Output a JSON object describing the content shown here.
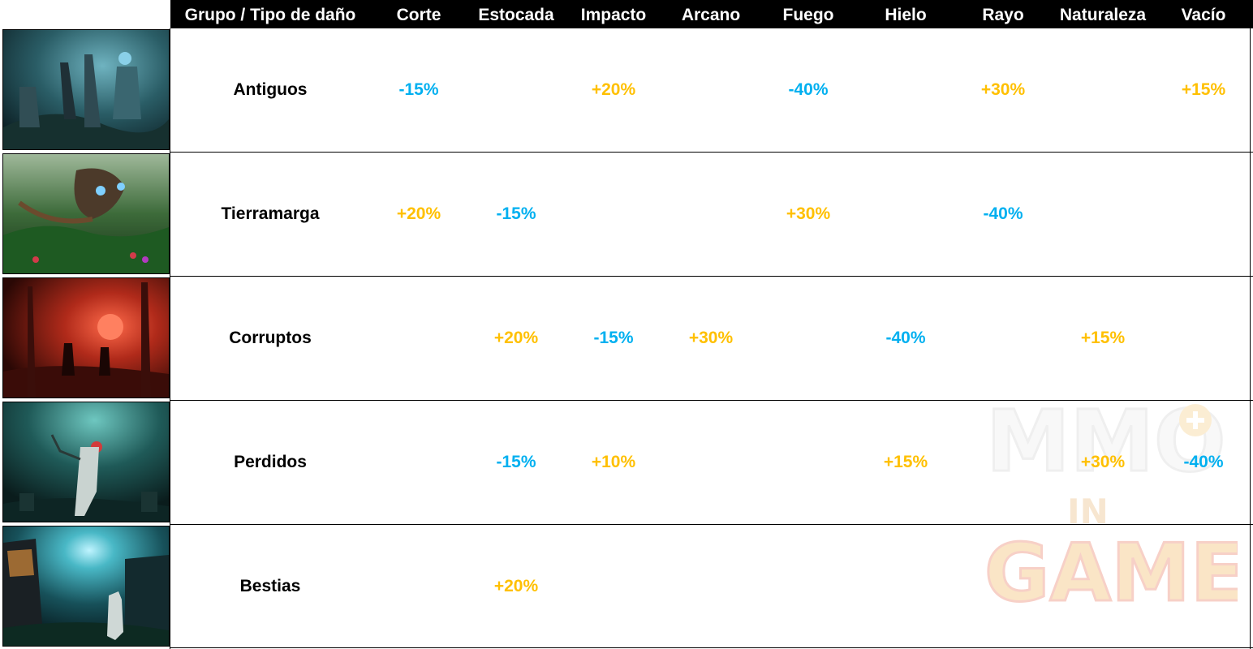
{
  "table": {
    "columns": [
      "Grupo / Tipo de daño",
      "Corte",
      "Estocada",
      "Impacto",
      "Arcano",
      "Fuego",
      "Hielo",
      "Rayo",
      "Naturaleza",
      "Vacío"
    ],
    "rows": [
      {
        "name": "Antiguos",
        "image": "ancients-scene-thumbnail",
        "values": [
          "-15%",
          "",
          "+20%",
          "",
          "-40%",
          "",
          "+30%",
          "",
          "+15%"
        ]
      },
      {
        "name": "Tierramarga",
        "image": "angry-earth-scene-thumbnail",
        "values": [
          "+20%",
          "-15%",
          "",
          "",
          "+30%",
          "",
          "-40%",
          "",
          ""
        ]
      },
      {
        "name": "Corruptos",
        "image": "corrupted-scene-thumbnail",
        "values": [
          "",
          "+20%",
          "-15%",
          "+30%",
          "",
          "-40%",
          "",
          "+15%",
          ""
        ]
      },
      {
        "name": "Perdidos",
        "image": "lost-scene-thumbnail",
        "values": [
          "",
          "-15%",
          "+10%",
          "",
          "",
          "+15%",
          "",
          "+30%",
          "-40%"
        ]
      },
      {
        "name": "Bestias",
        "image": "beasts-scene-thumbnail",
        "values": [
          "",
          "+20%",
          "",
          "",
          "",
          "",
          "",
          "",
          ""
        ]
      }
    ]
  },
  "colors": {
    "positive": "#ffc000",
    "negative": "#00b0f0",
    "header_background": "#000000",
    "header_text": "#ffffff"
  },
  "watermark": {
    "line1": "MMO",
    "line2": "IN",
    "line3": "GAME",
    "icon": "gamepad-icon"
  }
}
